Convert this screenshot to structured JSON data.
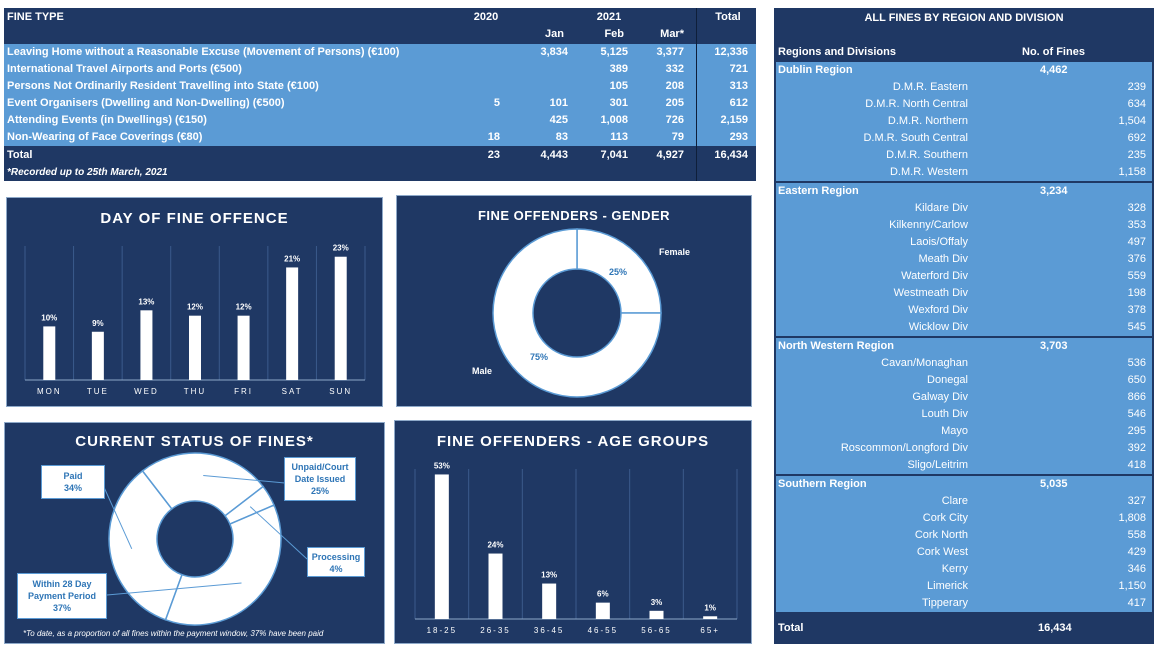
{
  "fines_table": {
    "header": {
      "fine_type": "FINE TYPE",
      "y2020": "2020",
      "y2021": "2021",
      "total": "Total",
      "jan": "Jan",
      "feb": "Feb",
      "mar": "Mar*"
    },
    "rows": [
      {
        "name": "Leaving Home without a Reasonable Excuse (Movement of Persons) (€100)",
        "y2020": "",
        "jan": "3,834",
        "feb": "5,125",
        "mar": "3,377",
        "total": "12,336"
      },
      {
        "name": "International Travel Airports and Ports (€500)",
        "y2020": "",
        "jan": "",
        "feb": "389",
        "mar": "332",
        "total": "721"
      },
      {
        "name": "Persons Not Ordinarily Resident Travelling into State (€100)",
        "y2020": "",
        "jan": "",
        "feb": "105",
        "mar": "208",
        "total": "313"
      },
      {
        "name": "Event Organisers (Dwelling and Non-Dwelling) (€500)",
        "y2020": "5",
        "jan": "101",
        "feb": "301",
        "mar": "205",
        "total": "612"
      },
      {
        "name": "Attending Events (in Dwellings) (€150)",
        "y2020": "",
        "jan": "425",
        "feb": "1,008",
        "mar": "726",
        "total": "2,159"
      },
      {
        "name": "Non-Wearing of Face Coverings (€80)",
        "y2020": "18",
        "jan": "83",
        "feb": "113",
        "mar": "79",
        "total": "293"
      }
    ],
    "total_row": {
      "name": "Total",
      "y2020": "23",
      "jan": "4,443",
      "feb": "7,041",
      "mar": "4,927",
      "total": "16,434"
    },
    "footnote": "*Recorded up to 25th March, 2021"
  },
  "region_table": {
    "title": "ALL FINES BY REGION AND DIVISION",
    "col_region": "Regions and Divisions",
    "col_count": "No. of Fines",
    "regions": [
      {
        "name": "Dublin Region",
        "total": "4,462",
        "divisions": [
          {
            "name": "D.M.R. Eastern",
            "value": "239"
          },
          {
            "name": "D.M.R. North Central",
            "value": "634"
          },
          {
            "name": "D.M.R. Northern",
            "value": "1,504"
          },
          {
            "name": "D.M.R. South Central",
            "value": "692"
          },
          {
            "name": "D.M.R. Southern",
            "value": "235"
          },
          {
            "name": "D.M.R. Western",
            "value": "1,158"
          }
        ]
      },
      {
        "name": "Eastern Region",
        "total": "3,234",
        "divisions": [
          {
            "name": "Kildare Div",
            "value": "328"
          },
          {
            "name": "Kilkenny/Carlow",
            "value": "353"
          },
          {
            "name": "Laois/Offaly",
            "value": "497"
          },
          {
            "name": "Meath Div",
            "value": "376"
          },
          {
            "name": "Waterford Div",
            "value": "559"
          },
          {
            "name": "Westmeath Div",
            "value": "198"
          },
          {
            "name": "Wexford Div",
            "value": "378"
          },
          {
            "name": "Wicklow Div",
            "value": "545"
          }
        ]
      },
      {
        "name": "North Western Region",
        "total": "3,703",
        "divisions": [
          {
            "name": "Cavan/Monaghan",
            "value": "536"
          },
          {
            "name": "Donegal",
            "value": "650"
          },
          {
            "name": "Galway Div",
            "value": "866"
          },
          {
            "name": "Louth Div",
            "value": "546"
          },
          {
            "name": "Mayo",
            "value": "295"
          },
          {
            "name": "Roscommon/Longford Div",
            "value": "392"
          },
          {
            "name": "Sligo/Leitrim",
            "value": "418"
          }
        ]
      },
      {
        "name": "Southern Region",
        "total": "5,035",
        "divisions": [
          {
            "name": "Clare",
            "value": "327"
          },
          {
            "name": "Cork City",
            "value": "1,808"
          },
          {
            "name": "Cork North",
            "value": "558"
          },
          {
            "name": "Cork West",
            "value": "429"
          },
          {
            "name": "Kerry",
            "value": "346"
          },
          {
            "name": "Limerick",
            "value": "1,150"
          },
          {
            "name": "Tipperary",
            "value": "417"
          }
        ]
      }
    ],
    "total_label": "Total",
    "total_value": "16,434"
  },
  "chart_data": [
    {
      "type": "bar",
      "title": "DAY OF FINE OFFENCE",
      "categories": [
        "MON",
        "TUE",
        "WED",
        "THU",
        "FRI",
        "SAT",
        "SUN"
      ],
      "values": [
        10,
        9,
        13,
        12,
        12,
        21,
        23
      ],
      "labels": [
        "10%",
        "9%",
        "13%",
        "12%",
        "12%",
        "21%",
        "23%"
      ],
      "ylim": [
        0,
        25
      ]
    },
    {
      "type": "pie",
      "title": "FINE OFFENDERS - GENDER",
      "categories": [
        "Female",
        "Male"
      ],
      "values": [
        25,
        75
      ],
      "labels": [
        "25%",
        "75%"
      ]
    },
    {
      "type": "pie",
      "title": "CURRENT STATUS OF FINES*",
      "categories": [
        "Paid",
        "Unpaid/Court Date Issued",
        "Processing",
        "Within 28 Day Payment Period"
      ],
      "values": [
        34,
        25,
        4,
        37
      ],
      "labels": [
        "34%",
        "25%",
        "4%",
        "37%"
      ],
      "footnote": "*To date, as a proportion of all fines within the payment window, 37% have been paid"
    },
    {
      "type": "bar",
      "title": "FINE OFFENDERS - AGE GROUPS",
      "categories": [
        "18-25",
        "26-35",
        "36-45",
        "46-55",
        "56-65",
        "65+"
      ],
      "values": [
        53,
        24,
        13,
        6,
        3,
        1
      ],
      "labels": [
        "53%",
        "24%",
        "13%",
        "6%",
        "3%",
        "1%"
      ],
      "ylim": [
        0,
        55
      ]
    }
  ],
  "colors": {
    "navy": "#1f3864",
    "light_blue": "#5b9bd5",
    "white": "#ffffff"
  }
}
